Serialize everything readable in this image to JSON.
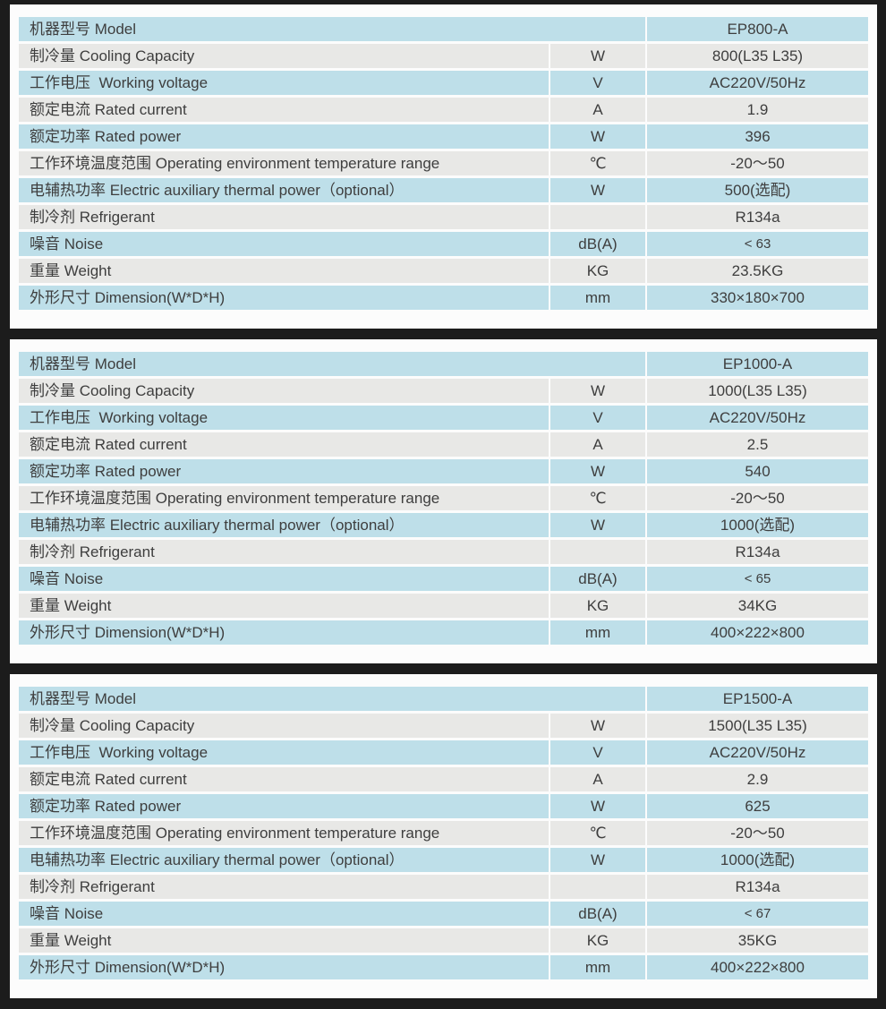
{
  "colors": {
    "background": "#1c1c1c",
    "panel": "#fcfcfc",
    "row_blue": "#bedfe9",
    "row_gray": "#e8e8e6",
    "text": "#3e3e3e"
  },
  "tables": [
    {
      "model": "EP800-A",
      "rows": [
        {
          "label": "机器型号 Model",
          "unit": null,
          "value": "EP800-A"
        },
        {
          "label": "制冷量 Cooling Capacity",
          "unit": "W",
          "value": "800(L35 L35)"
        },
        {
          "label": "工作电压  Working voltage",
          "unit": "V",
          "value": "AC220V/50Hz"
        },
        {
          "label": "额定电流 Rated current",
          "unit": "A",
          "value": "1.9"
        },
        {
          "label": "额定功率 Rated power",
          "unit": "W",
          "value": "396"
        },
        {
          "label": "工作环境温度范围 Operating environment temperature range",
          "unit": "℃",
          "value": "-20～50"
        },
        {
          "label": "电辅热功率 Electric auxiliary thermal power（optional）",
          "unit": "W",
          "value": "500(选配)"
        },
        {
          "label": "制冷剂 Refrigerant",
          "unit": "",
          "value": "R134a"
        },
        {
          "label": "噪音 Noise",
          "unit": "dB(A)",
          "value": "< 63"
        },
        {
          "label": "重量 Weight",
          "unit": "KG",
          "value": "23.5KG"
        },
        {
          "label": "外形尺寸 Dimension(W*D*H)",
          "unit": "mm",
          "value": "330×180×700"
        }
      ]
    },
    {
      "model": "EP1000-A",
      "rows": [
        {
          "label": "机器型号 Model",
          "unit": null,
          "value": "EP1000-A"
        },
        {
          "label": "制冷量 Cooling Capacity",
          "unit": "W",
          "value": "1000(L35 L35)"
        },
        {
          "label": "工作电压  Working voltage",
          "unit": "V",
          "value": "AC220V/50Hz"
        },
        {
          "label": "额定电流 Rated current",
          "unit": "A",
          "value": "2.5"
        },
        {
          "label": "额定功率 Rated power",
          "unit": "W",
          "value": "540"
        },
        {
          "label": "工作环境温度范围 Operating environment temperature range",
          "unit": "℃",
          "value": "-20～50"
        },
        {
          "label": "电辅热功率 Electric auxiliary thermal power（optional）",
          "unit": "W",
          "value": "1000(选配)"
        },
        {
          "label": "制冷剂 Refrigerant",
          "unit": "",
          "value": "R134a"
        },
        {
          "label": "噪音 Noise",
          "unit": "dB(A)",
          "value": "< 65"
        },
        {
          "label": "重量 Weight",
          "unit": "KG",
          "value": "34KG"
        },
        {
          "label": "外形尺寸 Dimension(W*D*H)",
          "unit": "mm",
          "value": "400×222×800"
        }
      ]
    },
    {
      "model": "EP1500-A",
      "rows": [
        {
          "label": "机器型号 Model",
          "unit": null,
          "value": "EP1500-A"
        },
        {
          "label": "制冷量 Cooling Capacity",
          "unit": "W",
          "value": "1500(L35 L35)"
        },
        {
          "label": "工作电压  Working voltage",
          "unit": "V",
          "value": "AC220V/50Hz"
        },
        {
          "label": "额定电流 Rated current",
          "unit": "A",
          "value": "2.9"
        },
        {
          "label": "额定功率 Rated power",
          "unit": "W",
          "value": "625"
        },
        {
          "label": "工作环境温度范围 Operating environment temperature range",
          "unit": "℃",
          "value": "-20～50"
        },
        {
          "label": "电辅热功率 Electric auxiliary thermal power（optional）",
          "unit": "W",
          "value": "1000(选配)"
        },
        {
          "label": "制冷剂 Refrigerant",
          "unit": "",
          "value": "R134a"
        },
        {
          "label": "噪音 Noise",
          "unit": "dB(A)",
          "value": "< 67"
        },
        {
          "label": "重量 Weight",
          "unit": "KG",
          "value": "35KG"
        },
        {
          "label": "外形尺寸 Dimension(W*D*H)",
          "unit": "mm",
          "value": "400×222×800"
        }
      ]
    }
  ]
}
